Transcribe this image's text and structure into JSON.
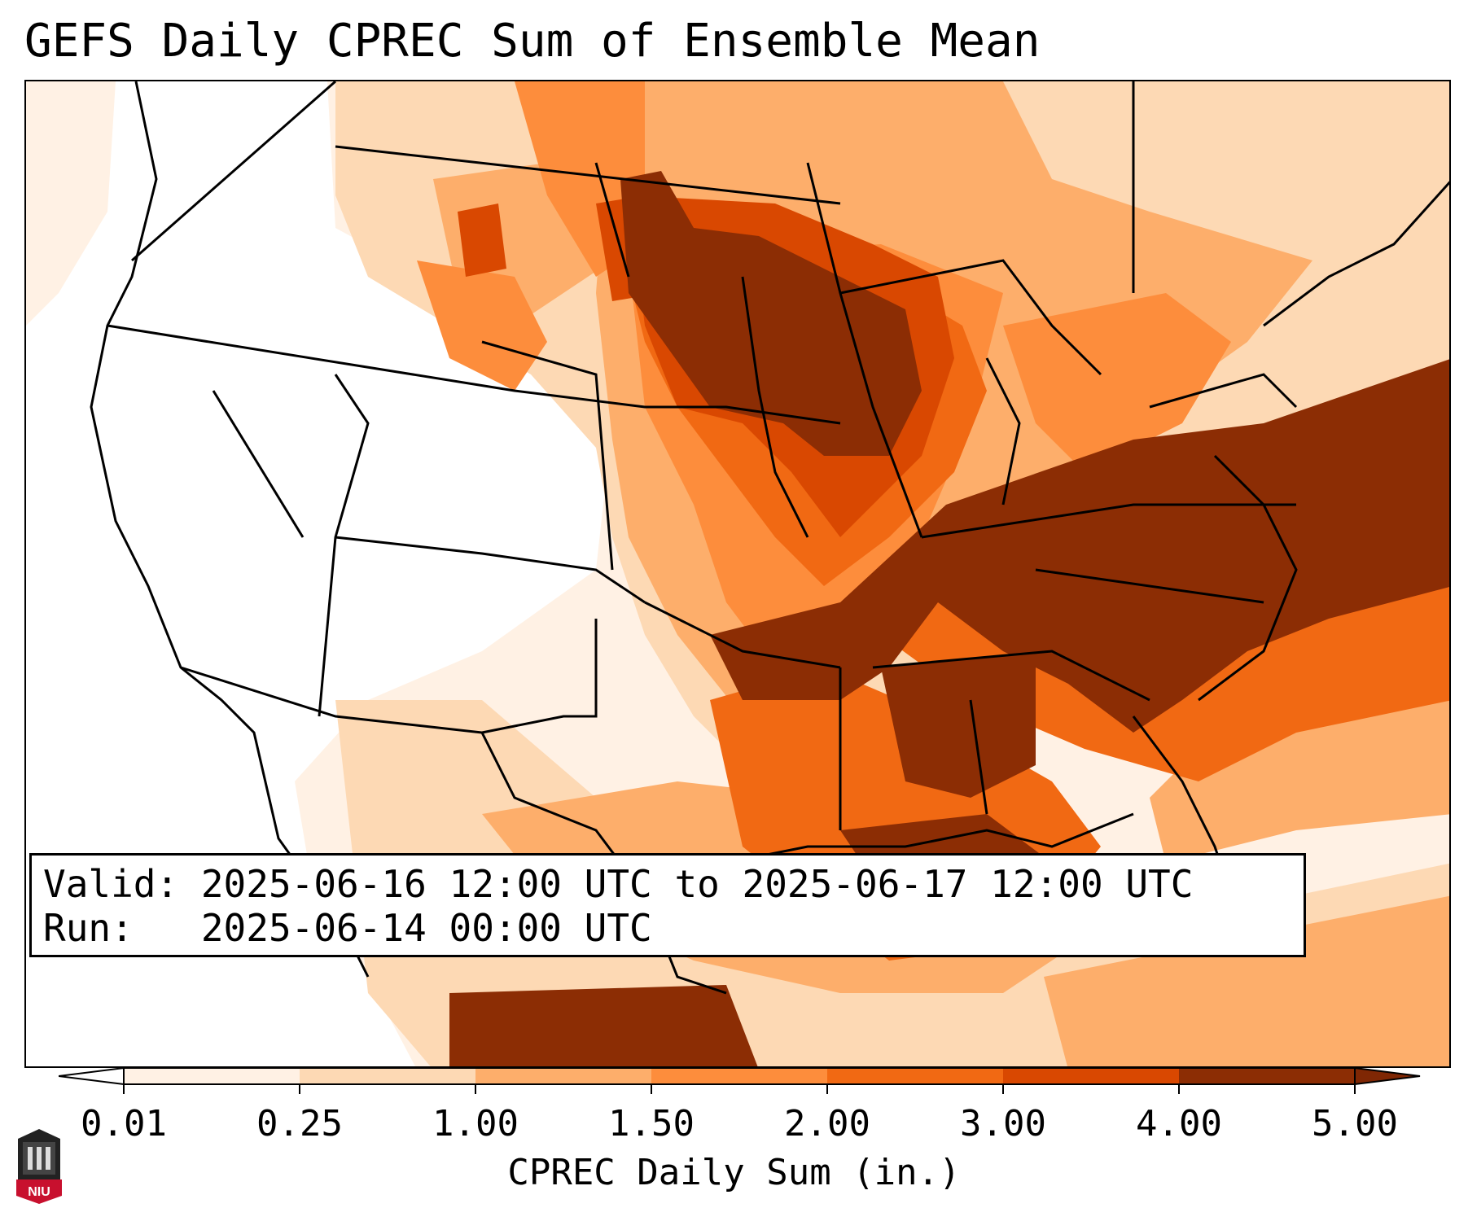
{
  "title": "GEFS Daily CPREC Sum of Ensemble Mean",
  "valid_line": "Valid: 2025-06-16 12:00 UTC to 2025-06-17 12:00 UTC",
  "run_line": "Run:   2025-06-14 00:00 UTC",
  "colorbar": {
    "title": "CPREC Daily Sum (in.)",
    "ticks": [
      "0.01",
      "0.25",
      "1.00",
      "1.50",
      "2.00",
      "3.00",
      "4.00",
      "5.00"
    ],
    "colors": [
      "#fff1e4",
      "#fdd9b4",
      "#fdae6b",
      "#fd8d3c",
      "#f16913",
      "#d94801",
      "#8c2d04"
    ],
    "extend": "both",
    "under_color": "#ffffff",
    "over_color": "#7f2704"
  },
  "logo_text": "NIU"
}
